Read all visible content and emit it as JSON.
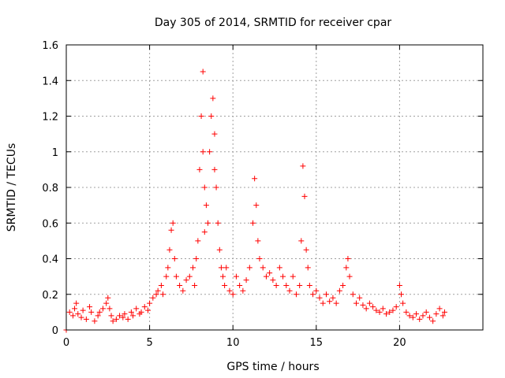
{
  "chart_data": {
    "type": "scatter",
    "title": "Day 305 of 2014, SRMTID for receiver cpar",
    "xlabel": "GPS time / hours",
    "ylabel": "SRMTID / TECUs",
    "xlim": [
      0,
      25
    ],
    "ylim": [
      0,
      1.6
    ],
    "xticks": [
      0,
      5,
      10,
      15,
      20
    ],
    "xtick_labels": [
      "0",
      "5",
      "10",
      "15",
      "20"
    ],
    "yticks": [
      0,
      0.2,
      0.4,
      0.6,
      0.8,
      1.0,
      1.2,
      1.4,
      1.6
    ],
    "ytick_labels": [
      "0",
      "0.2",
      "0.4",
      "0.6",
      "0.8",
      "1",
      "1.2",
      "1.4",
      "1.6"
    ],
    "grid": true,
    "marker": "plus",
    "color": "#ff0000",
    "series": [
      {
        "name": "SRMTID",
        "x": [
          0.0,
          0.2,
          0.4,
          0.5,
          0.6,
          0.7,
          0.9,
          1.0,
          1.2,
          1.4,
          1.5,
          1.7,
          1.9,
          2.0,
          2.2,
          2.4,
          2.5,
          2.6,
          2.7,
          2.8,
          3.0,
          3.2,
          3.4,
          3.5,
          3.7,
          3.9,
          4.0,
          4.2,
          4.4,
          4.5,
          4.7,
          4.9,
          5.0,
          5.2,
          5.4,
          5.5,
          5.7,
          5.8,
          6.0,
          6.1,
          6.2,
          6.3,
          6.4,
          6.5,
          6.6,
          6.8,
          7.0,
          7.2,
          7.4,
          7.6,
          7.7,
          7.8,
          7.9,
          8.0,
          8.1,
          8.2,
          8.2,
          8.3,
          8.3,
          8.4,
          8.5,
          8.6,
          8.7,
          8.8,
          8.9,
          8.9,
          9.0,
          9.1,
          9.2,
          9.3,
          9.4,
          9.5,
          9.6,
          9.8,
          10.0,
          10.2,
          10.4,
          10.6,
          10.8,
          11.0,
          11.2,
          11.3,
          11.4,
          11.5,
          11.6,
          11.8,
          12.0,
          12.2,
          12.4,
          12.6,
          12.8,
          13.0,
          13.2,
          13.4,
          13.6,
          13.8,
          14.0,
          14.1,
          14.2,
          14.3,
          14.4,
          14.5,
          14.6,
          14.8,
          15.0,
          15.2,
          15.4,
          15.6,
          15.8,
          16.0,
          16.2,
          16.4,
          16.6,
          16.8,
          16.9,
          17.0,
          17.2,
          17.4,
          17.6,
          17.8,
          18.0,
          18.2,
          18.4,
          18.6,
          18.8,
          19.0,
          19.2,
          19.4,
          19.6,
          19.8,
          20.0,
          20.1,
          20.2,
          20.4,
          20.6,
          20.8,
          21.0,
          21.2,
          21.4,
          21.6,
          21.8,
          22.0,
          22.2,
          22.4,
          22.6,
          22.7
        ],
        "y": [
          0.0,
          0.1,
          0.08,
          0.12,
          0.15,
          0.09,
          0.07,
          0.11,
          0.06,
          0.13,
          0.1,
          0.05,
          0.08,
          0.1,
          0.12,
          0.15,
          0.18,
          0.12,
          0.08,
          0.05,
          0.06,
          0.08,
          0.07,
          0.09,
          0.06,
          0.1,
          0.08,
          0.12,
          0.09,
          0.1,
          0.13,
          0.11,
          0.15,
          0.18,
          0.2,
          0.22,
          0.25,
          0.2,
          0.3,
          0.35,
          0.45,
          0.56,
          0.6,
          0.4,
          0.3,
          0.25,
          0.22,
          0.28,
          0.3,
          0.35,
          0.25,
          0.4,
          0.5,
          0.9,
          1.2,
          1.45,
          1.0,
          0.8,
          0.55,
          0.7,
          0.6,
          1.0,
          1.2,
          1.3,
          1.1,
          0.9,
          0.8,
          0.6,
          0.45,
          0.35,
          0.3,
          0.25,
          0.35,
          0.22,
          0.2,
          0.3,
          0.25,
          0.22,
          0.28,
          0.35,
          0.6,
          0.85,
          0.7,
          0.5,
          0.4,
          0.35,
          0.3,
          0.32,
          0.28,
          0.25,
          0.35,
          0.3,
          0.25,
          0.22,
          0.3,
          0.2,
          0.25,
          0.5,
          0.92,
          0.75,
          0.45,
          0.35,
          0.25,
          0.2,
          0.22,
          0.18,
          0.15,
          0.2,
          0.16,
          0.18,
          0.15,
          0.22,
          0.25,
          0.35,
          0.4,
          0.3,
          0.2,
          0.15,
          0.18,
          0.14,
          0.12,
          0.15,
          0.13,
          0.11,
          0.1,
          0.12,
          0.09,
          0.1,
          0.11,
          0.13,
          0.25,
          0.2,
          0.15,
          0.1,
          0.08,
          0.07,
          0.09,
          0.06,
          0.08,
          0.1,
          0.07,
          0.05,
          0.09,
          0.12,
          0.08,
          0.1
        ]
      }
    ]
  }
}
